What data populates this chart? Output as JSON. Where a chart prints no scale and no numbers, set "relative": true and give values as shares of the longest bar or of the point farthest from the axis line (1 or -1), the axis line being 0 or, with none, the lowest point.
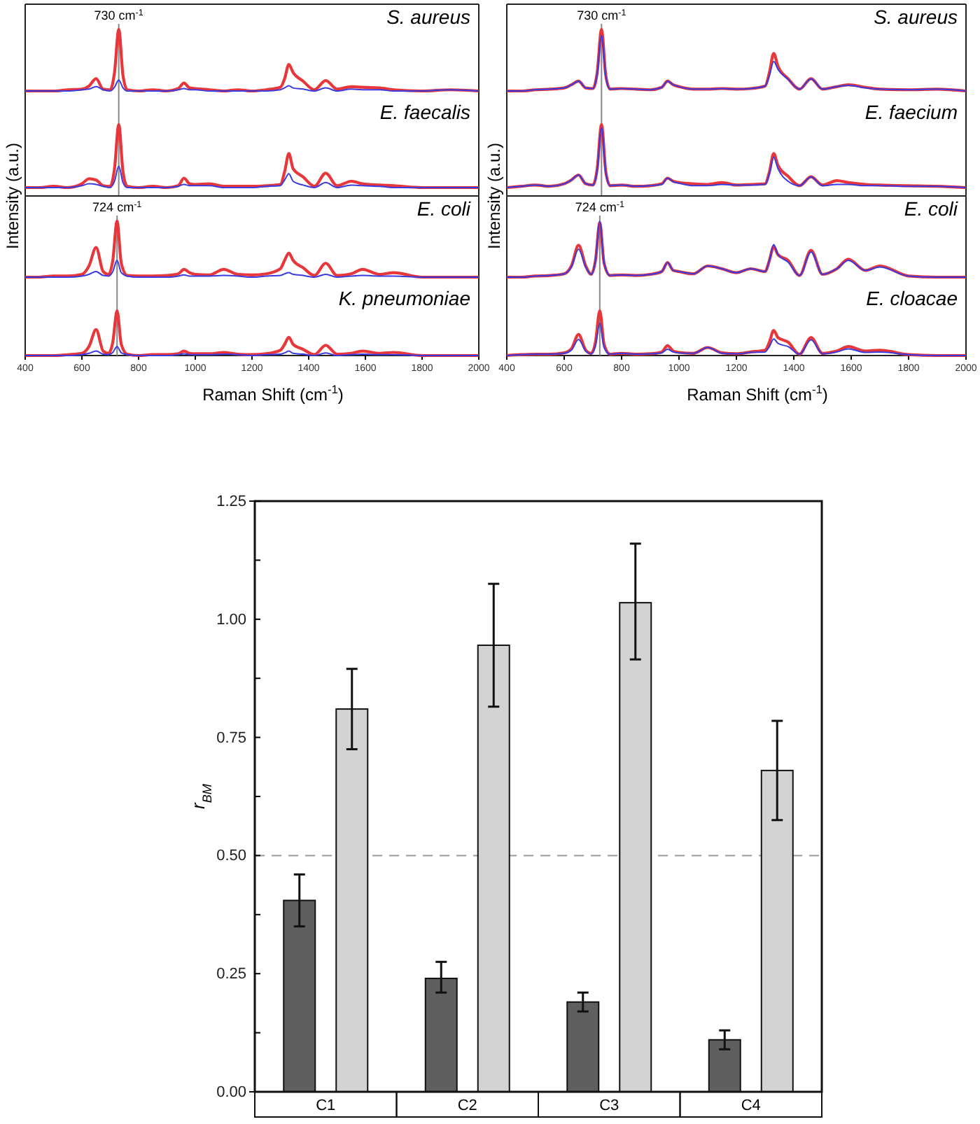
{
  "chart_data": [
    {
      "type": "line",
      "title": "S. aureus",
      "relative": true,
      "tick_labels": false,
      "xlim": [
        400,
        2000
      ],
      "x": [
        400,
        450,
        500,
        550,
        600,
        625,
        650,
        675,
        700,
        715,
        730,
        745,
        760,
        800,
        850,
        900,
        940,
        960,
        980,
        1000,
        1050,
        1100,
        1150,
        1200,
        1250,
        1300,
        1315,
        1330,
        1345,
        1380,
        1420,
        1460,
        1500,
        1550,
        1590,
        1650,
        1700,
        1800,
        1900,
        2000
      ],
      "ref_lines": [
        {
          "axis": "x",
          "value": 730,
          "label": "730 cm$^{-1}$",
          "color": "#888888"
        }
      ],
      "series": [
        {
          "color": "#e8373a",
          "values": [
            0,
            0,
            0,
            0.02,
            0.03,
            0.08,
            0.2,
            0.03,
            0.02,
            0.3,
            1,
            0.25,
            0.02,
            0,
            0.02,
            0,
            0.04,
            0.13,
            0.05,
            0.04,
            0.02,
            0,
            0.02,
            0,
            0.02,
            0.06,
            0.2,
            0.43,
            0.3,
            0.16,
            0.02,
            0.17,
            0.03,
            0.07,
            0.06,
            0.05,
            0.02,
            0,
            0.02,
            0
          ]
        },
        {
          "color": "#3a3ae0",
          "values": [
            0,
            0,
            0,
            0,
            0.02,
            0.03,
            0.07,
            0.02,
            0,
            0.06,
            0.18,
            0.05,
            0,
            0,
            0,
            0,
            0.02,
            0.04,
            0.02,
            0.02,
            0,
            0,
            0,
            0,
            0,
            0.02,
            0.05,
            0.085,
            0.05,
            0.03,
            0,
            0.05,
            0,
            0.03,
            0.02,
            0.02,
            0,
            0,
            0.02,
            0
          ]
        }
      ]
    },
    {
      "type": "line",
      "title": "E. faecalis",
      "relative": true,
      "tick_labels": false,
      "xlim": [
        400,
        2000
      ],
      "x": [
        400,
        450,
        500,
        550,
        600,
        625,
        650,
        675,
        700,
        715,
        730,
        745,
        760,
        800,
        850,
        900,
        940,
        960,
        980,
        1000,
        1050,
        1100,
        1150,
        1200,
        1250,
        1300,
        1315,
        1330,
        1345,
        1380,
        1420,
        1460,
        1500,
        1550,
        1590,
        1650,
        1700,
        1800,
        1900,
        2000
      ],
      "ref_lines": [
        {
          "axis": "x",
          "value": 730,
          "color": "#888888"
        }
      ],
      "series": [
        {
          "color": "#e8373a",
          "values": [
            0,
            0,
            0.02,
            0,
            0.06,
            0.14,
            0.12,
            0.03,
            0.02,
            0.3,
            1,
            0.25,
            0.02,
            0,
            0.02,
            0,
            0.03,
            0.15,
            0.06,
            0.05,
            0.06,
            0.02,
            0.02,
            0.02,
            0.03,
            0.05,
            0.25,
            0.54,
            0.3,
            0.17,
            0.02,
            0.23,
            0.03,
            0.1,
            0.06,
            0.04,
            0.03,
            0,
            0,
            0
          ]
        },
        {
          "color": "#3a3ae0",
          "values": [
            0,
            0,
            0,
            0,
            0.03,
            0.06,
            0.05,
            0.02,
            0,
            0.1,
            0.34,
            0.08,
            0,
            0,
            0,
            0,
            0.02,
            0.05,
            0.03,
            0.03,
            0.03,
            0,
            0,
            0,
            0.02,
            0.03,
            0.12,
            0.22,
            0.1,
            0.04,
            0,
            0.08,
            0,
            0.04,
            0.03,
            0.02,
            0,
            0,
            0,
            0
          ]
        }
      ]
    },
    {
      "type": "line",
      "title": "E. coli",
      "ylabel": "Intensity (a.u.)",
      "relative": true,
      "tick_labels": false,
      "xlim": [
        400,
        2000
      ],
      "x": [
        400,
        450,
        500,
        550,
        600,
        625,
        650,
        675,
        694,
        709,
        724,
        739,
        760,
        800,
        850,
        900,
        940,
        960,
        980,
        1000,
        1050,
        1100,
        1150,
        1200,
        1250,
        1300,
        1315,
        1330,
        1345,
        1380,
        1420,
        1460,
        1500,
        1550,
        1590,
        1650,
        1700,
        1800,
        1900,
        2000
      ],
      "ref_lines": [
        {
          "axis": "x",
          "value": 724,
          "label": "724 cm$^{-1}$",
          "color": "#888888"
        }
      ],
      "series": [
        {
          "color": "#e8373a",
          "values": [
            0,
            0,
            0.02,
            0.02,
            0.05,
            0.2,
            0.53,
            0.1,
            0.05,
            0.3,
            1,
            0.25,
            0.03,
            0.02,
            0.02,
            0.03,
            0.06,
            0.14,
            0.08,
            0.05,
            0.04,
            0.14,
            0.05,
            0.04,
            0.06,
            0.15,
            0.3,
            0.43,
            0.3,
            0.17,
            0.03,
            0.25,
            0.03,
            0.06,
            0.14,
            0.05,
            0.08,
            0,
            0,
            0
          ]
        },
        {
          "color": "#3a3ae0",
          "values": [
            0,
            0,
            0,
            0,
            0.02,
            0.05,
            0.1,
            0.03,
            0.02,
            0.1,
            0.3,
            0.08,
            0.02,
            0,
            0,
            0,
            0.02,
            0.04,
            0.02,
            0.02,
            0.02,
            0.03,
            0.02,
            0,
            0.02,
            0.03,
            0.06,
            0.08,
            0.05,
            0.03,
            0,
            0.05,
            0,
            0.02,
            0.03,
            0.02,
            0.02,
            0,
            0,
            0
          ]
        }
      ]
    },
    {
      "type": "line",
      "title": "K. pneumoniae",
      "xlabel": "Raman Shift (cm$^{-1}$)",
      "relative": true,
      "tick_labels": "x",
      "xlim": [
        400,
        2000
      ],
      "xticks": [
        400,
        600,
        800,
        1000,
        1200,
        1400,
        1600,
        1800,
        2000
      ],
      "x": [
        400,
        450,
        500,
        550,
        600,
        625,
        650,
        675,
        694,
        709,
        724,
        739,
        760,
        800,
        850,
        900,
        940,
        960,
        980,
        1000,
        1050,
        1100,
        1150,
        1200,
        1250,
        1300,
        1315,
        1330,
        1345,
        1380,
        1420,
        1460,
        1500,
        1550,
        1590,
        1650,
        1700,
        1800,
        1900,
        2000
      ],
      "ref_lines": [
        {
          "axis": "x",
          "value": 724,
          "color": "#888888"
        }
      ],
      "series": [
        {
          "color": "#e8373a",
          "values": [
            0,
            0,
            0,
            0.02,
            0.05,
            0.2,
            0.58,
            0.1,
            0.05,
            0.3,
            1,
            0.25,
            0.03,
            0,
            0.02,
            0.02,
            0.04,
            0.1,
            0.05,
            0.04,
            0.04,
            0.07,
            0.03,
            0.02,
            0.04,
            0.12,
            0.25,
            0.41,
            0.25,
            0.14,
            0.02,
            0.23,
            0.03,
            0.05,
            0.1,
            0.05,
            0.07,
            0,
            0,
            0
          ]
        },
        {
          "color": "#3a3ae0",
          "values": [
            0,
            0,
            0,
            0,
            0.02,
            0.05,
            0.1,
            0.03,
            0.02,
            0.07,
            0.2,
            0.06,
            0.02,
            0,
            0,
            0,
            0.02,
            0.04,
            0.02,
            0.02,
            0.02,
            0.03,
            0.02,
            0,
            0.02,
            0.03,
            0.06,
            0.1,
            0.05,
            0.03,
            0,
            0.06,
            0,
            0.02,
            0.03,
            0.02,
            0.02,
            0,
            0,
            0
          ]
        }
      ]
    },
    {
      "type": "line",
      "title": "S. aureus",
      "relative": true,
      "tick_labels": false,
      "xlim": [
        400,
        2000
      ],
      "x": [
        400,
        450,
        500,
        550,
        600,
        625,
        650,
        675,
        700,
        715,
        730,
        745,
        760,
        800,
        850,
        900,
        940,
        960,
        980,
        1000,
        1050,
        1100,
        1150,
        1200,
        1250,
        1300,
        1315,
        1330,
        1345,
        1380,
        1420,
        1460,
        1500,
        1550,
        1590,
        1650,
        1700,
        1800,
        1900,
        2000
      ],
      "ref_lines": [
        {
          "axis": "x",
          "value": 730,
          "label": "730 cm$^{-1}$",
          "color": "#888888"
        }
      ],
      "series": [
        {
          "color": "#e8373a",
          "values": [
            0,
            0,
            0.02,
            0.03,
            0.05,
            0.1,
            0.16,
            0.05,
            0.04,
            0.3,
            1,
            0.25,
            0.03,
            0.04,
            0.03,
            0.02,
            0.06,
            0.16,
            0.1,
            0.07,
            0.03,
            0.03,
            0.04,
            0.03,
            0.04,
            0.08,
            0.3,
            0.61,
            0.4,
            0.2,
            0.03,
            0.2,
            0.03,
            0.07,
            0.1,
            0.06,
            0.03,
            0.02,
            0.03,
            0
          ]
        },
        {
          "color": "#3a3ae0",
          "values": [
            0,
            0,
            0.02,
            0.03,
            0.05,
            0.1,
            0.16,
            0.05,
            0.04,
            0.28,
            0.9,
            0.23,
            0.03,
            0.04,
            0.03,
            0.02,
            0.06,
            0.16,
            0.1,
            0.07,
            0.03,
            0.03,
            0.04,
            0.03,
            0.04,
            0.08,
            0.25,
            0.48,
            0.35,
            0.19,
            0.03,
            0.2,
            0.03,
            0.07,
            0.09,
            0.05,
            0.03,
            0.02,
            0.03,
            0
          ]
        }
      ]
    },
    {
      "type": "line",
      "title": "E. faecium",
      "relative": true,
      "tick_labels": false,
      "xlim": [
        400,
        2000
      ],
      "x": [
        400,
        450,
        500,
        550,
        600,
        625,
        650,
        675,
        700,
        715,
        730,
        745,
        760,
        800,
        850,
        900,
        940,
        960,
        980,
        1000,
        1050,
        1100,
        1150,
        1200,
        1250,
        1300,
        1315,
        1330,
        1345,
        1380,
        1420,
        1460,
        1500,
        1550,
        1590,
        1650,
        1700,
        1800,
        1900,
        2000
      ],
      "ref_lines": [
        {
          "axis": "x",
          "value": 730,
          "color": "#888888"
        }
      ],
      "series": [
        {
          "color": "#e8373a",
          "values": [
            0,
            0.02,
            0.04,
            0.02,
            0.06,
            0.12,
            0.2,
            0.06,
            0.04,
            0.3,
            1,
            0.25,
            0.03,
            0.04,
            0.02,
            0.03,
            0.06,
            0.15,
            0.1,
            0.08,
            0.06,
            0.05,
            0.08,
            0.04,
            0.05,
            0.06,
            0.25,
            0.54,
            0.35,
            0.18,
            0.03,
            0.17,
            0.04,
            0.11,
            0.08,
            0.05,
            0.04,
            0.03,
            0.02,
            0
          ]
        },
        {
          "color": "#3a3ae0",
          "values": [
            0,
            0.02,
            0.04,
            0.02,
            0.06,
            0.12,
            0.2,
            0.06,
            0.04,
            0.28,
            0.95,
            0.24,
            0.03,
            0.04,
            0.02,
            0.03,
            0.05,
            0.15,
            0.09,
            0.07,
            0.03,
            0.03,
            0.05,
            0.04,
            0.04,
            0.05,
            0.22,
            0.48,
            0.3,
            0.1,
            0.03,
            0.17,
            0.03,
            0.05,
            0.05,
            0.03,
            0.03,
            0.02,
            0.02,
            0
          ]
        }
      ]
    },
    {
      "type": "line",
      "title": "E. coli",
      "ylabel": "Intensity (a.u.)",
      "relative": true,
      "tick_labels": false,
      "xlim": [
        400,
        2000
      ],
      "x": [
        400,
        450,
        500,
        550,
        600,
        625,
        650,
        675,
        694,
        709,
        724,
        739,
        760,
        800,
        850,
        900,
        940,
        960,
        980,
        1000,
        1050,
        1100,
        1150,
        1200,
        1250,
        1300,
        1315,
        1330,
        1345,
        1380,
        1420,
        1460,
        1500,
        1550,
        1590,
        1650,
        1700,
        1800,
        1900,
        2000
      ],
      "ref_lines": [
        {
          "axis": "x",
          "value": 724,
          "label": "724 cm$^{-1}$",
          "color": "#888888"
        }
      ],
      "series": [
        {
          "color": "#e8373a",
          "values": [
            0,
            0,
            0.02,
            0.03,
            0.06,
            0.2,
            0.57,
            0.2,
            0.05,
            0.3,
            0.97,
            0.25,
            0.03,
            0.04,
            0.03,
            0.05,
            0.1,
            0.26,
            0.12,
            0.1,
            0.06,
            0.2,
            0.15,
            0.08,
            0.15,
            0.1,
            0.3,
            0.55,
            0.4,
            0.3,
            0.03,
            0.48,
            0.05,
            0.15,
            0.32,
            0.12,
            0.2,
            0.02,
            0,
            0
          ]
        },
        {
          "color": "#3a3ae0",
          "values": [
            0,
            0,
            0.02,
            0.03,
            0.06,
            0.18,
            0.5,
            0.18,
            0.05,
            0.3,
            1,
            0.25,
            0.03,
            0.04,
            0.03,
            0.05,
            0.1,
            0.26,
            0.12,
            0.1,
            0.06,
            0.2,
            0.15,
            0.08,
            0.15,
            0.1,
            0.3,
            0.58,
            0.4,
            0.27,
            0.03,
            0.45,
            0.05,
            0.15,
            0.3,
            0.12,
            0.18,
            0.02,
            0,
            0
          ]
        }
      ]
    },
    {
      "type": "line",
      "title": "E. cloacae",
      "xlabel": "Raman Shift (cm$^{-1}$)",
      "relative": true,
      "tick_labels": "x",
      "xlim": [
        400,
        2000
      ],
      "xticks": [
        400,
        600,
        800,
        1000,
        1200,
        1400,
        1600,
        1800,
        2000
      ],
      "x": [
        400,
        450,
        500,
        550,
        600,
        625,
        650,
        675,
        694,
        709,
        724,
        739,
        760,
        800,
        850,
        900,
        940,
        960,
        980,
        1000,
        1050,
        1100,
        1150,
        1200,
        1250,
        1300,
        1315,
        1330,
        1345,
        1380,
        1420,
        1460,
        1500,
        1550,
        1590,
        1650,
        1700,
        1800,
        1900,
        2000
      ],
      "ref_lines": [
        {
          "axis": "x",
          "value": 724,
          "color": "#888888"
        }
      ],
      "series": [
        {
          "color": "#e8373a",
          "values": [
            0,
            0.02,
            0.03,
            0.03,
            0.06,
            0.15,
            0.47,
            0.12,
            0.05,
            0.3,
            1,
            0.25,
            0.03,
            0.05,
            0.03,
            0.04,
            0.08,
            0.22,
            0.1,
            0.07,
            0.05,
            0.18,
            0.06,
            0.04,
            0.08,
            0.12,
            0.3,
            0.56,
            0.4,
            0.3,
            0.03,
            0.4,
            0.05,
            0.1,
            0.2,
            0.1,
            0.12,
            0.02,
            0,
            0
          ]
        },
        {
          "color": "#3a3ae0",
          "values": [
            0,
            0.02,
            0.03,
            0.03,
            0.05,
            0.12,
            0.36,
            0.1,
            0.04,
            0.22,
            0.72,
            0.18,
            0.03,
            0.05,
            0.03,
            0.04,
            0.06,
            0.14,
            0.08,
            0.06,
            0.05,
            0.18,
            0.05,
            0.04,
            0.07,
            0.08,
            0.2,
            0.37,
            0.27,
            0.2,
            0.03,
            0.35,
            0.04,
            0.08,
            0.15,
            0.07,
            0.08,
            0.02,
            0,
            0
          ]
        }
      ]
    },
    {
      "type": "bar",
      "ylabel": "r$_{BM}$",
      "categories": [
        "C1",
        "C2",
        "C3",
        "C4"
      ],
      "ylim": [
        0,
        1.25
      ],
      "yticks": [
        {
          "value": 0,
          "label": "0.00"
        },
        {
          "value": 0.125,
          "label": null
        },
        {
          "value": 0.25,
          "label": "0.25"
        },
        {
          "value": 0.375,
          "label": null
        },
        {
          "value": 0.5,
          "label": "0.50"
        },
        {
          "value": 0.625,
          "label": null
        },
        {
          "value": 0.75,
          "label": "0.75"
        },
        {
          "value": 0.875,
          "label": null
        },
        {
          "value": 1,
          "label": "1.00"
        },
        {
          "value": 1.125,
          "label": null
        },
        {
          "value": 1.25,
          "label": "1.25"
        }
      ],
      "ref_lines": [
        {
          "axis": "y",
          "value": 0.5,
          "color": "#999999",
          "line_style": "dashed"
        }
      ],
      "series": [
        {
          "color": "#5f5f5f",
          "values": [
            0.405,
            0.24,
            0.19,
            0.11
          ],
          "errors": [
            [
              0.35,
              0.46
            ],
            [
              0.21,
              0.275
            ],
            [
              0.17,
              0.21
            ],
            [
              0.09,
              0.13
            ]
          ]
        },
        {
          "color": "#d3d3d3",
          "values": [
            0.81,
            0.945,
            1.035,
            0.68
          ],
          "errors": [
            [
              0.725,
              0.895
            ],
            [
              0.815,
              1.075
            ],
            [
              0.915,
              1.16
            ],
            [
              0.575,
              0.785
            ]
          ]
        }
      ]
    }
  ]
}
